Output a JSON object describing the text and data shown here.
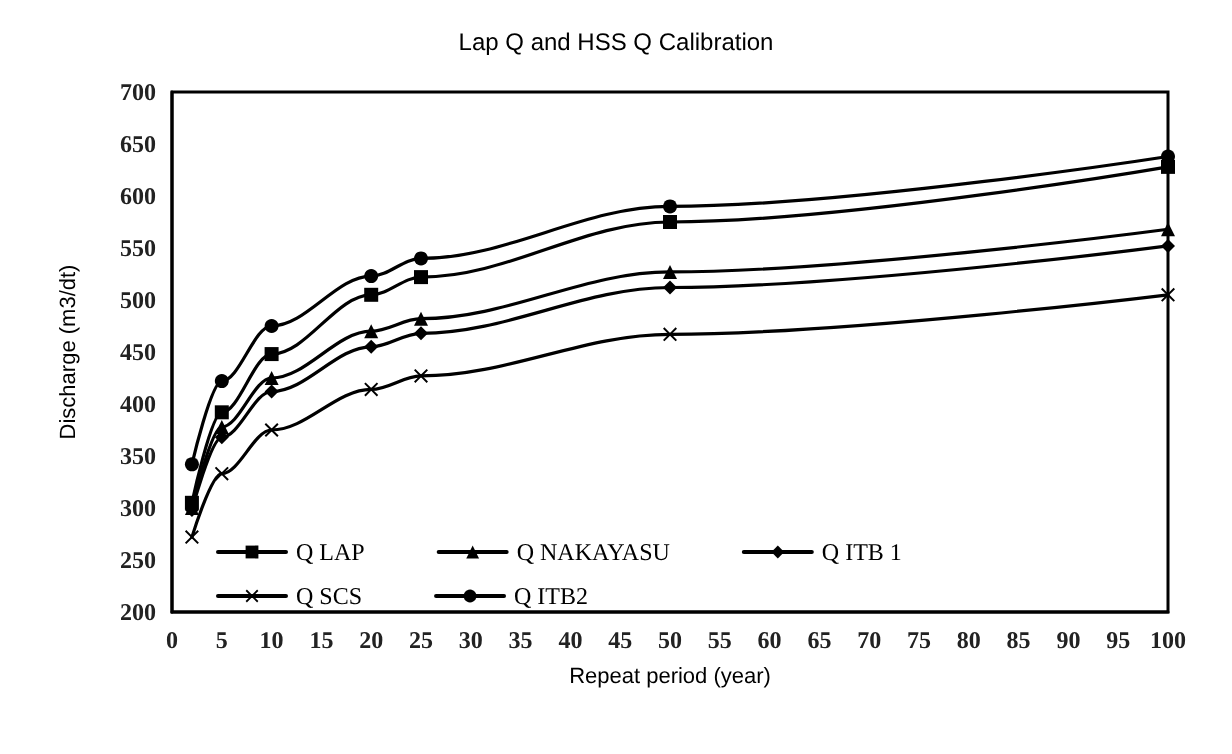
{
  "chart_data": {
    "type": "line",
    "title": "Lap Q and HSS Q Calibration",
    "xlabel": "Repeat period (year)",
    "ylabel": "Discharge (m3/dt)",
    "x": [
      2,
      5,
      10,
      20,
      25,
      50,
      100
    ],
    "series": [
      {
        "name": "Q LAP",
        "color": "#000000",
        "marker": "square",
        "values": [
          305,
          392,
          448,
          505,
          522,
          575,
          628
        ]
      },
      {
        "name": "Q NAKAYASU",
        "color": "#000000",
        "marker": "triangle",
        "values": [
          300,
          378,
          425,
          470,
          482,
          527,
          568
        ]
      },
      {
        "name": "Q ITB 1",
        "color": "#000000",
        "marker": "diamond",
        "values": [
          298,
          368,
          412,
          455,
          468,
          512,
          552
        ]
      },
      {
        "name": "Q SCS",
        "color": "#000000",
        "marker": "cross",
        "values": [
          272,
          333,
          375,
          414,
          427,
          467,
          505
        ]
      },
      {
        "name": "Q ITB2",
        "color": "#000000",
        "marker": "circle",
        "values": [
          342,
          422,
          475,
          523,
          540,
          590,
          638
        ]
      }
    ],
    "xlim": [
      0,
      100
    ],
    "xticks": [
      0,
      5,
      10,
      15,
      20,
      25,
      30,
      35,
      40,
      45,
      50,
      55,
      60,
      65,
      70,
      75,
      80,
      85,
      90,
      95,
      100
    ],
    "ylim": [
      200,
      700
    ],
    "yticks": [
      200,
      250,
      300,
      350,
      400,
      450,
      500,
      550,
      600,
      650,
      700
    ],
    "grid": false,
    "legend": "bottom",
    "line_style": "solid"
  }
}
